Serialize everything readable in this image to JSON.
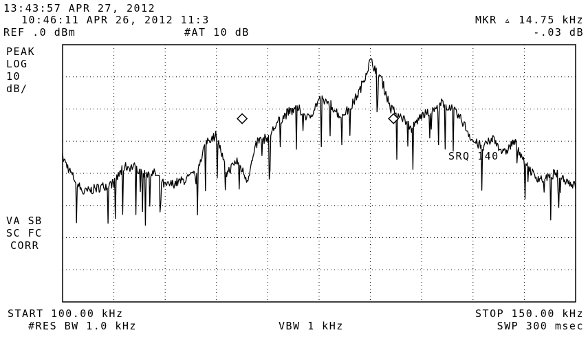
{
  "header": {
    "timestamp": "13:43:57 APR 27, 2012",
    "ref_timestamp": "10:46:11 APR 26, 2012 11:3",
    "ref_level": "REF .0 dBm",
    "attenuation": "#AT 10 dB",
    "marker_label": "MKR ▵ 14.75 kHz",
    "marker_value": "-.03 dB"
  },
  "left_annotations": {
    "detector": "PEAK",
    "scale_mode": "LOG",
    "scale_value": "10",
    "scale_unit": "dB/",
    "va_sb": "VA SB",
    "sc_fc": "SC FC",
    "corr": "CORR"
  },
  "trace_annotation": "SRQ 140",
  "footer": {
    "start": "START 100.00 kHz",
    "stop": "STOP 150.00 kHz",
    "rbw": "#RES BW 1.0 kHz",
    "vbw": "VBW 1 kHz",
    "sweep": "SWP 300 msec"
  },
  "chart_data": {
    "type": "line",
    "x_start_khz": 100.0,
    "x_stop_khz": 150.0,
    "ref_level_dbm": 0.0,
    "scale_db_per_div": 10,
    "ylim": [
      -80,
      0
    ],
    "x": [
      100,
      101,
      102,
      103,
      104,
      105,
      106,
      107,
      108,
      109,
      110,
      111,
      112,
      113,
      114,
      115,
      116,
      117,
      118,
      119,
      120,
      121,
      122,
      123,
      124,
      125,
      126,
      127,
      128,
      129,
      130,
      131,
      132,
      133,
      134,
      135,
      136,
      137,
      138,
      139,
      140,
      141,
      142,
      143,
      144,
      145,
      146,
      147,
      148,
      149,
      150
    ],
    "y": [
      -35,
      -41,
      -46,
      -45,
      -44,
      -43,
      -38,
      -38,
      -40,
      -40,
      -44,
      -43,
      -42,
      -40,
      -30,
      -28,
      -40,
      -36,
      -42,
      -30,
      -29,
      -24,
      -21,
      -20,
      -23,
      -17,
      -18,
      -22,
      -20,
      -14,
      -5,
      -10,
      -20,
      -22,
      -26,
      -22,
      -21,
      -18,
      -20,
      -24,
      -30,
      -32,
      -29,
      -34,
      -30,
      -36,
      -41,
      -42,
      -40,
      -42,
      -44
    ],
    "markers": [
      {
        "x_khz": 117.5,
        "y_dbm": -23
      },
      {
        "x_khz": 132.25,
        "y_dbm": -23
      }
    ],
    "grid": true
  }
}
